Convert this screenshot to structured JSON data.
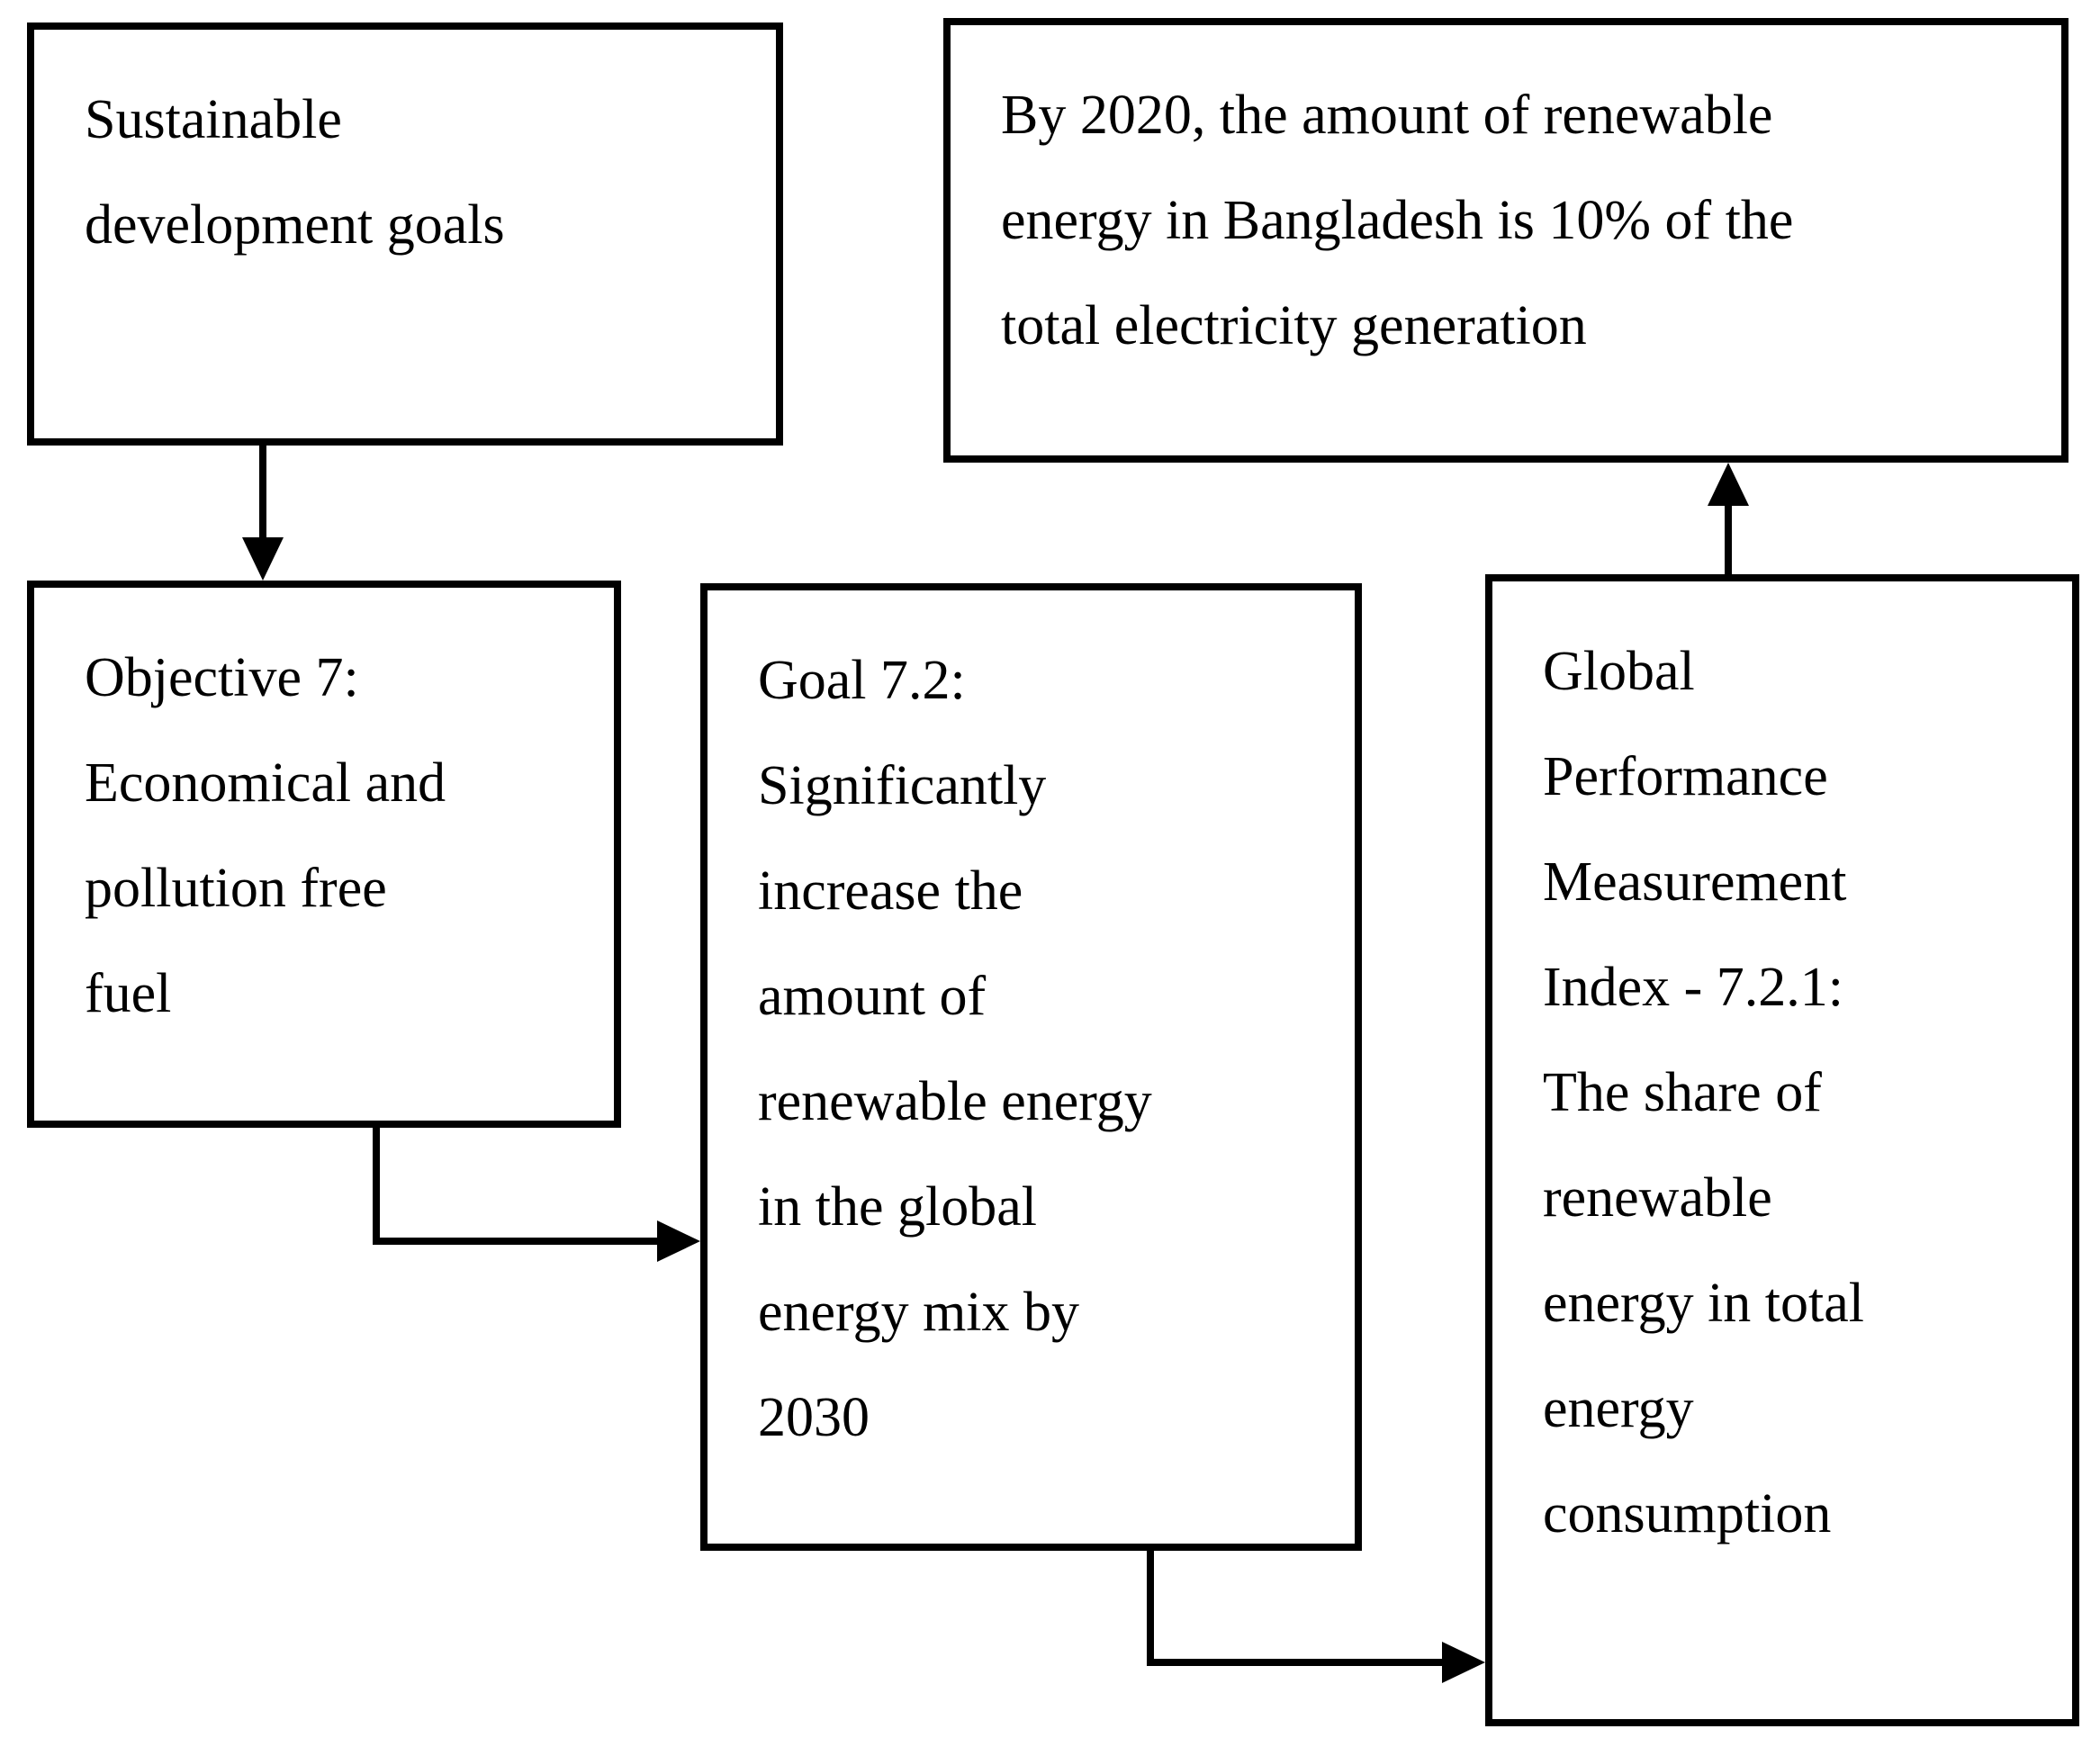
{
  "diagram": {
    "type": "flowchart",
    "background_color": "#ffffff",
    "line_color": "#000000",
    "text_color": "#000000",
    "nodes": {
      "sdg": {
        "id": "sdg",
        "text": "Sustainable\ndevelopment goals"
      },
      "target2020": {
        "id": "target2020",
        "text": "By 2020, the amount of renewable\nenergy in Bangladesh is 10% of the\ntotal electricity generation"
      },
      "objective7": {
        "id": "objective7",
        "text": "Objective 7:\nEconomical and\npollution free\nfuel"
      },
      "goal72": {
        "id": "goal72",
        "text": "Goal 7.2:\nSignificantly\nincrease the\namount of\nrenewable energy\nin the global\nenergy mix by\n2030"
      },
      "index721": {
        "id": "index721",
        "text": "Global\nPerformance\nMeasurement\nIndex - 7.2.1:\nThe share of\nrenewable\nenergy in total\nenergy\nconsumption"
      }
    },
    "edges": [
      {
        "from": "sdg",
        "to": "objective7",
        "style": "straight-down"
      },
      {
        "from": "objective7",
        "to": "goal72",
        "style": "elbow-down-right"
      },
      {
        "from": "goal72",
        "to": "index721",
        "style": "elbow-down-right"
      },
      {
        "from": "index721",
        "to": "target2020",
        "style": "straight-up"
      }
    ]
  }
}
